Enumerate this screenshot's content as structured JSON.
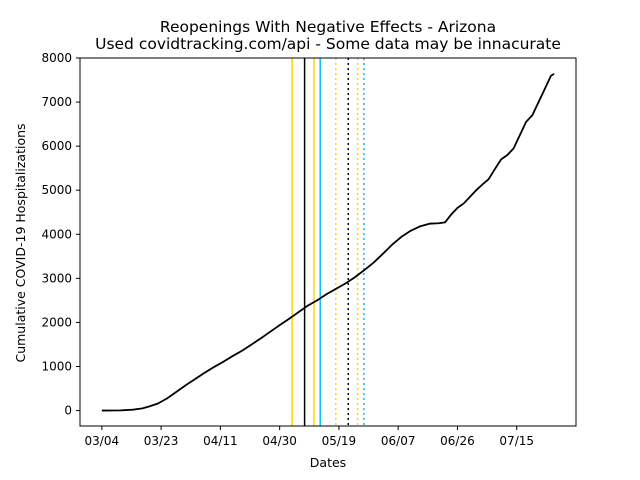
{
  "chart_data": {
    "type": "line",
    "title": "Reopenings With Negative Effects - Arizona",
    "subtitle": "Used covidtracking.com/api - Some data may be innacurate",
    "xlabel": "Dates",
    "ylabel": "Cumulative COVID-19 Hospitalizations",
    "x_start_date": "2020-03-04",
    "x_end_date": "2020-07-27",
    "xlim": [
      "2020-02-26",
      "2020-08-03"
    ],
    "ylim": [
      -350,
      8000
    ],
    "x_ticks": [
      "03/04",
      "03/23",
      "04/11",
      "04/30",
      "05/19",
      "06/07",
      "06/26",
      "07/15"
    ],
    "y_ticks": [
      0,
      1000,
      2000,
      3000,
      4000,
      5000,
      6000,
      7000,
      8000
    ],
    "grid": false,
    "series": [
      {
        "color": "#000000",
        "points": [
          [
            "2020-03-04",
            0
          ],
          [
            "2020-03-10",
            5
          ],
          [
            "2020-03-14",
            20
          ],
          [
            "2020-03-17",
            50
          ],
          [
            "2020-03-19",
            90
          ],
          [
            "2020-03-22",
            160
          ],
          [
            "2020-03-25",
            280
          ],
          [
            "2020-03-28",
            430
          ],
          [
            "2020-03-31",
            580
          ],
          [
            "2020-04-03",
            720
          ],
          [
            "2020-04-06",
            860
          ],
          [
            "2020-04-09",
            990
          ],
          [
            "2020-04-12",
            1110
          ],
          [
            "2020-04-15",
            1240
          ],
          [
            "2020-04-18",
            1360
          ],
          [
            "2020-04-21",
            1500
          ],
          [
            "2020-04-24",
            1640
          ],
          [
            "2020-04-27",
            1790
          ],
          [
            "2020-04-30",
            1940
          ],
          [
            "2020-05-03",
            2080
          ],
          [
            "2020-05-06",
            2230
          ],
          [
            "2020-05-09",
            2380
          ],
          [
            "2020-05-12",
            2500
          ],
          [
            "2020-05-15",
            2640
          ],
          [
            "2020-05-18",
            2760
          ],
          [
            "2020-05-21",
            2880
          ],
          [
            "2020-05-24",
            3020
          ],
          [
            "2020-05-27",
            3180
          ],
          [
            "2020-05-30",
            3350
          ],
          [
            "2020-06-02",
            3550
          ],
          [
            "2020-06-05",
            3760
          ],
          [
            "2020-06-08",
            3940
          ],
          [
            "2020-06-11",
            4080
          ],
          [
            "2020-06-14",
            4180
          ],
          [
            "2020-06-17",
            4240
          ],
          [
            "2020-06-20",
            4250
          ],
          [
            "2020-06-22",
            4270
          ],
          [
            "2020-06-24",
            4450
          ],
          [
            "2020-06-26",
            4600
          ],
          [
            "2020-06-28",
            4700
          ],
          [
            "2020-06-30",
            4850
          ],
          [
            "2020-07-02",
            5000
          ],
          [
            "2020-07-04",
            5130
          ],
          [
            "2020-07-06",
            5250
          ],
          [
            "2020-07-08",
            5480
          ],
          [
            "2020-07-10",
            5700
          ],
          [
            "2020-07-12",
            5800
          ],
          [
            "2020-07-14",
            5950
          ],
          [
            "2020-07-16",
            6250
          ],
          [
            "2020-07-18",
            6550
          ],
          [
            "2020-07-20",
            6700
          ],
          [
            "2020-07-22",
            7000
          ],
          [
            "2020-07-24",
            7300
          ],
          [
            "2020-07-26",
            7600
          ],
          [
            "2020-07-27",
            7640
          ]
        ]
      }
    ],
    "reference_lines": [
      {
        "date": "2020-05-04",
        "color": "#ffd700",
        "style": "solid"
      },
      {
        "date": "2020-05-08",
        "color": "#000000",
        "style": "solid"
      },
      {
        "date": "2020-05-11",
        "color": "#ffd700",
        "style": "solid"
      },
      {
        "date": "2020-05-13",
        "color": "#00bfff",
        "style": "solid"
      },
      {
        "date": "2020-05-18",
        "color": "#ffd700",
        "style": "dotted"
      },
      {
        "date": "2020-05-22",
        "color": "#000000",
        "style": "dotted"
      },
      {
        "date": "2020-05-25",
        "color": "#ffd700",
        "style": "dotted"
      },
      {
        "date": "2020-05-27",
        "color": "#00bfff",
        "style": "dotted"
      }
    ]
  }
}
